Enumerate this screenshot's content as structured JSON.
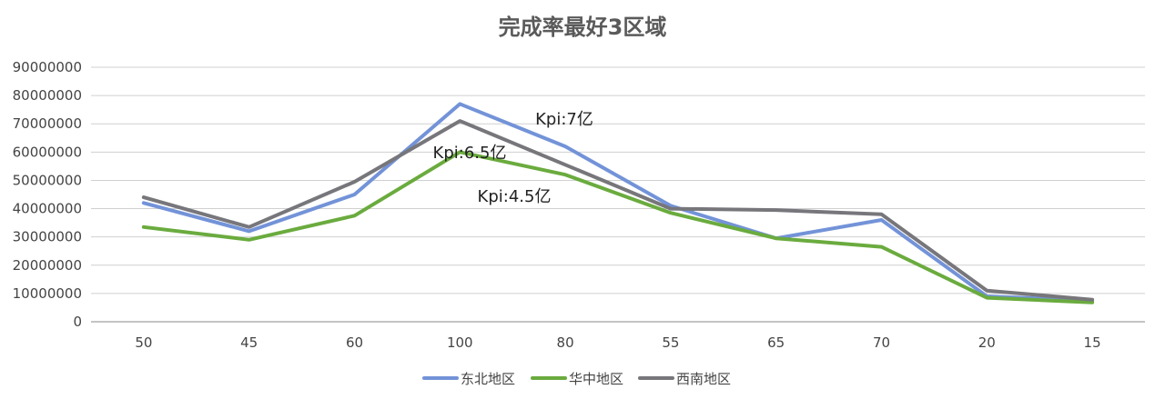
{
  "chart_data": {
    "type": "line",
    "title": "完成率最好3区域",
    "xlabel": "",
    "ylabel": "",
    "categories": [
      "50",
      "45",
      "60",
      "100",
      "80",
      "55",
      "65",
      "70",
      "20",
      "15"
    ],
    "ylim": [
      0,
      90000000
    ],
    "yticks": [
      "0",
      "10000000",
      "20000000",
      "30000000",
      "40000000",
      "50000000",
      "60000000",
      "70000000",
      "80000000",
      "90000000"
    ],
    "grid": true,
    "legend_position": "bottom",
    "series": [
      {
        "name": "东北地区",
        "color": "#7393d8",
        "values": [
          42000000,
          32000000,
          45000000,
          77000000,
          62000000,
          41000000,
          29500000,
          36000000,
          9000000,
          7500000
        ]
      },
      {
        "name": "华中地区",
        "color": "#6aab3e",
        "values": [
          33500000,
          29000000,
          37500000,
          60000000,
          52000000,
          38500000,
          29500000,
          26500000,
          8500000,
          6800000
        ]
      },
      {
        "name": "西南地区",
        "color": "#77767b",
        "values": [
          44000000,
          33500000,
          49500000,
          71000000,
          55500000,
          40000000,
          39500000,
          38000000,
          11000000,
          7800000
        ]
      }
    ],
    "annotations": [
      "Kpi:7亿",
      "Kpi:6.5亿",
      "Kpi:4.5亿"
    ]
  }
}
